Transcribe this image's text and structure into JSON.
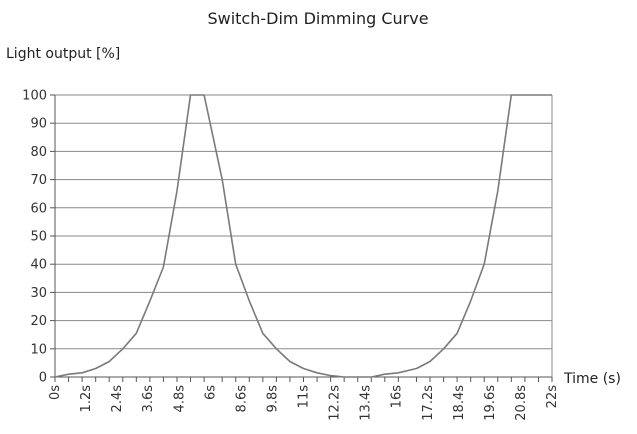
{
  "chart_data": {
    "type": "line",
    "title": "Switch-Dim Dimming Curve",
    "ylabel": "Light output [%]",
    "xlabel": "Time (s)",
    "ylim": [
      0,
      100
    ],
    "yticks": [
      0,
      10,
      20,
      30,
      40,
      50,
      60,
      70,
      80,
      90,
      100
    ],
    "grid": true,
    "legend": "none",
    "categories": [
      "0s",
      "1.2s",
      "2.4s",
      "3.6s",
      "4.8s",
      "6s",
      "8.6s",
      "9.8s",
      "11s",
      "12.2s",
      "13.4s",
      "16s",
      "17.2s",
      "18.4s",
      "19.6s",
      "20.8s",
      "22s"
    ],
    "x": [
      0,
      0.6,
      1.2,
      1.8,
      2.4,
      3.0,
      3.6,
      4.2,
      4.8,
      5.4,
      6.0,
      6.6,
      7.4,
      8.0,
      8.6,
      9.2,
      9.8,
      10.4,
      11.0,
      11.6,
      12.2,
      12.8,
      13.4,
      14.0,
      14.6,
      15.2,
      16.0,
      16.6,
      17.2,
      17.8,
      18.4,
      19.0,
      19.6,
      20.2,
      20.8,
      21.4,
      22.0
    ],
    "series": [
      {
        "values": [
          0,
          1,
          1.5,
          3,
          5.5,
          10,
          15.5,
          27,
          39,
          66,
          100,
          100,
          70,
          40,
          27,
          15.5,
          10,
          5.5,
          3,
          1.5,
          0.5,
          0,
          0,
          0,
          1,
          1.5,
          3,
          5.5,
          10,
          15.5,
          27,
          40,
          66,
          100,
          100,
          100,
          100
        ]
      }
    ],
    "colors": {
      "line": "#7a7a7a",
      "grid": "#8a8a8a",
      "axis": "#555555"
    }
  }
}
